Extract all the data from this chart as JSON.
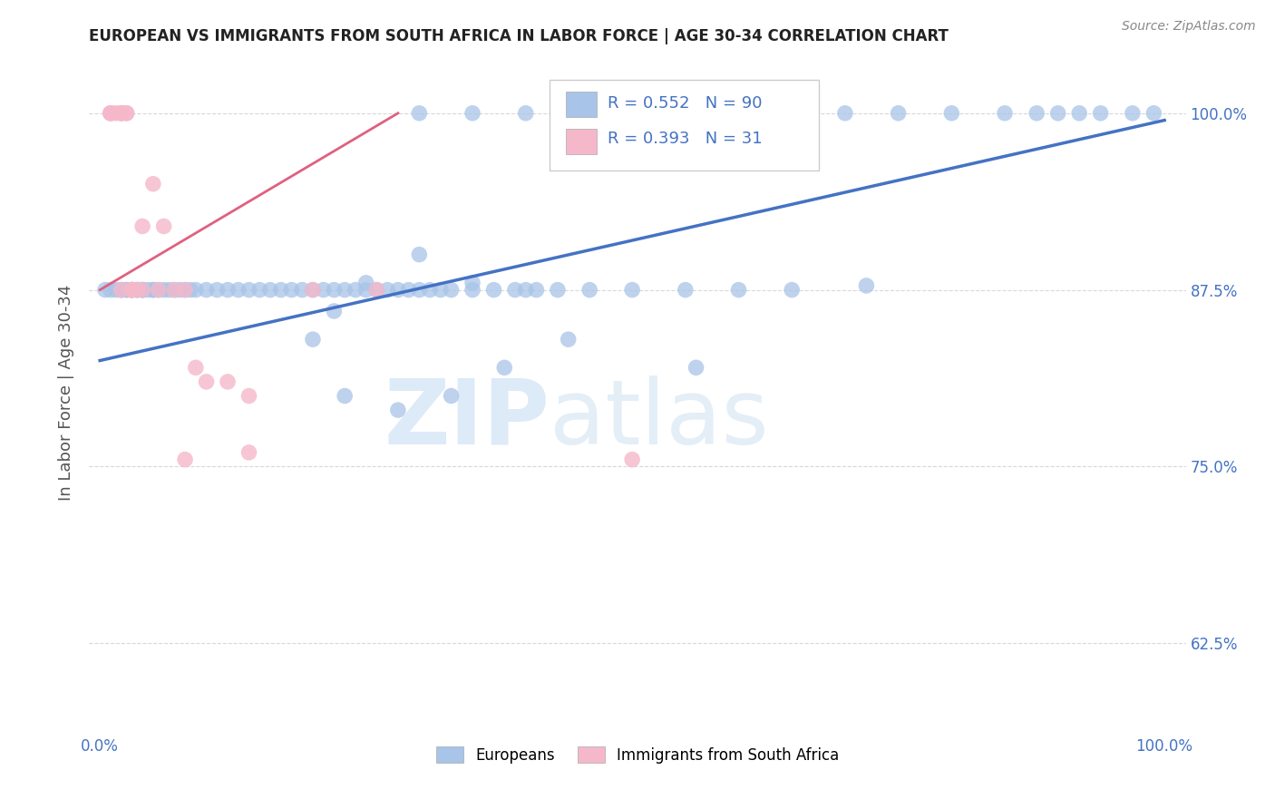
{
  "title": "EUROPEAN VS IMMIGRANTS FROM SOUTH AFRICA IN LABOR FORCE | AGE 30-34 CORRELATION CHART",
  "source": "Source: ZipAtlas.com",
  "ylabel": "In Labor Force | Age 30-34",
  "xlim": [
    -0.01,
    1.02
  ],
  "ylim": [
    0.565,
    1.04
  ],
  "ytick_positions": [
    0.625,
    0.75,
    0.875,
    1.0
  ],
  "ytick_labels": [
    "62.5%",
    "75.0%",
    "87.5%",
    "100.0%"
  ],
  "legend_labels": [
    "Europeans",
    "Immigrants from South Africa"
  ],
  "blue_R": 0.552,
  "blue_N": 90,
  "pink_R": 0.393,
  "pink_N": 31,
  "blue_color": "#a8c4e8",
  "pink_color": "#f5b8ca",
  "blue_line_color": "#4472c4",
  "pink_line_color": "#e06080",
  "watermark_zip": "ZIP",
  "watermark_atlas": "atlas",
  "background_color": "#ffffff",
  "grid_color": "#d8d8d8",
  "axis_label_color": "#4472c4",
  "title_color": "#222222",
  "blue_x": [
    0.005,
    0.01,
    0.015,
    0.02,
    0.025,
    0.03,
    0.035,
    0.04,
    0.04,
    0.05,
    0.02,
    0.025,
    0.03,
    0.035,
    0.04,
    0.045,
    0.05,
    0.055,
    0.06,
    0.065,
    0.07,
    0.075,
    0.08,
    0.085,
    0.09,
    0.1,
    0.11,
    0.12,
    0.13,
    0.14,
    0.15,
    0.16,
    0.17,
    0.18,
    0.19,
    0.2,
    0.21,
    0.22,
    0.23,
    0.24,
    0.25,
    0.26,
    0.27,
    0.28,
    0.29,
    0.3,
    0.31,
    0.32,
    0.33,
    0.35,
    0.37,
    0.39,
    0.4,
    0.41,
    0.43,
    0.46,
    0.5,
    0.55,
    0.6,
    0.65,
    0.3,
    0.35,
    0.4,
    0.45,
    0.5,
    0.55,
    0.6,
    0.65,
    0.7,
    0.75,
    0.8,
    0.85,
    0.88,
    0.9,
    0.92,
    0.94,
    0.97,
    0.99,
    0.72,
    0.56,
    0.2,
    0.22,
    0.25,
    0.3,
    0.35,
    0.23,
    0.28,
    0.33,
    0.38,
    0.44
  ],
  "blue_y": [
    0.875,
    0.875,
    0.875,
    0.875,
    0.875,
    0.875,
    0.875,
    0.875,
    0.875,
    0.875,
    0.875,
    0.875,
    0.875,
    0.875,
    0.875,
    0.875,
    0.875,
    0.875,
    0.875,
    0.875,
    0.875,
    0.875,
    0.875,
    0.875,
    0.875,
    0.875,
    0.875,
    0.875,
    0.875,
    0.875,
    0.875,
    0.875,
    0.875,
    0.875,
    0.875,
    0.875,
    0.875,
    0.875,
    0.875,
    0.875,
    0.875,
    0.875,
    0.875,
    0.875,
    0.875,
    0.875,
    0.875,
    0.875,
    0.875,
    0.875,
    0.875,
    0.875,
    0.875,
    0.875,
    0.875,
    0.875,
    0.875,
    0.875,
    0.875,
    0.875,
    1.0,
    1.0,
    1.0,
    1.0,
    1.0,
    1.0,
    1.0,
    1.0,
    1.0,
    1.0,
    1.0,
    1.0,
    1.0,
    1.0,
    1.0,
    1.0,
    1.0,
    1.0,
    0.878,
    0.82,
    0.84,
    0.86,
    0.88,
    0.9,
    0.88,
    0.8,
    0.79,
    0.8,
    0.82,
    0.84
  ],
  "pink_x": [
    0.01,
    0.01,
    0.01,
    0.015,
    0.02,
    0.02,
    0.02,
    0.025,
    0.025,
    0.03,
    0.03,
    0.03,
    0.02,
    0.03,
    0.035,
    0.04,
    0.04,
    0.05,
    0.055,
    0.06,
    0.07,
    0.08,
    0.09,
    0.1,
    0.12,
    0.14,
    0.2,
    0.26,
    0.14,
    0.08,
    0.5
  ],
  "pink_y": [
    1.0,
    1.0,
    1.0,
    1.0,
    1.0,
    1.0,
    1.0,
    1.0,
    1.0,
    0.875,
    0.875,
    0.875,
    0.875,
    0.875,
    0.875,
    0.92,
    0.875,
    0.95,
    0.875,
    0.92,
    0.875,
    0.875,
    0.82,
    0.81,
    0.81,
    0.8,
    0.875,
    0.875,
    0.76,
    0.755,
    0.755
  ],
  "blue_line": [
    0.0,
    1.0,
    0.825,
    0.995
  ],
  "pink_line": [
    0.0,
    0.28,
    0.875,
    1.0
  ]
}
